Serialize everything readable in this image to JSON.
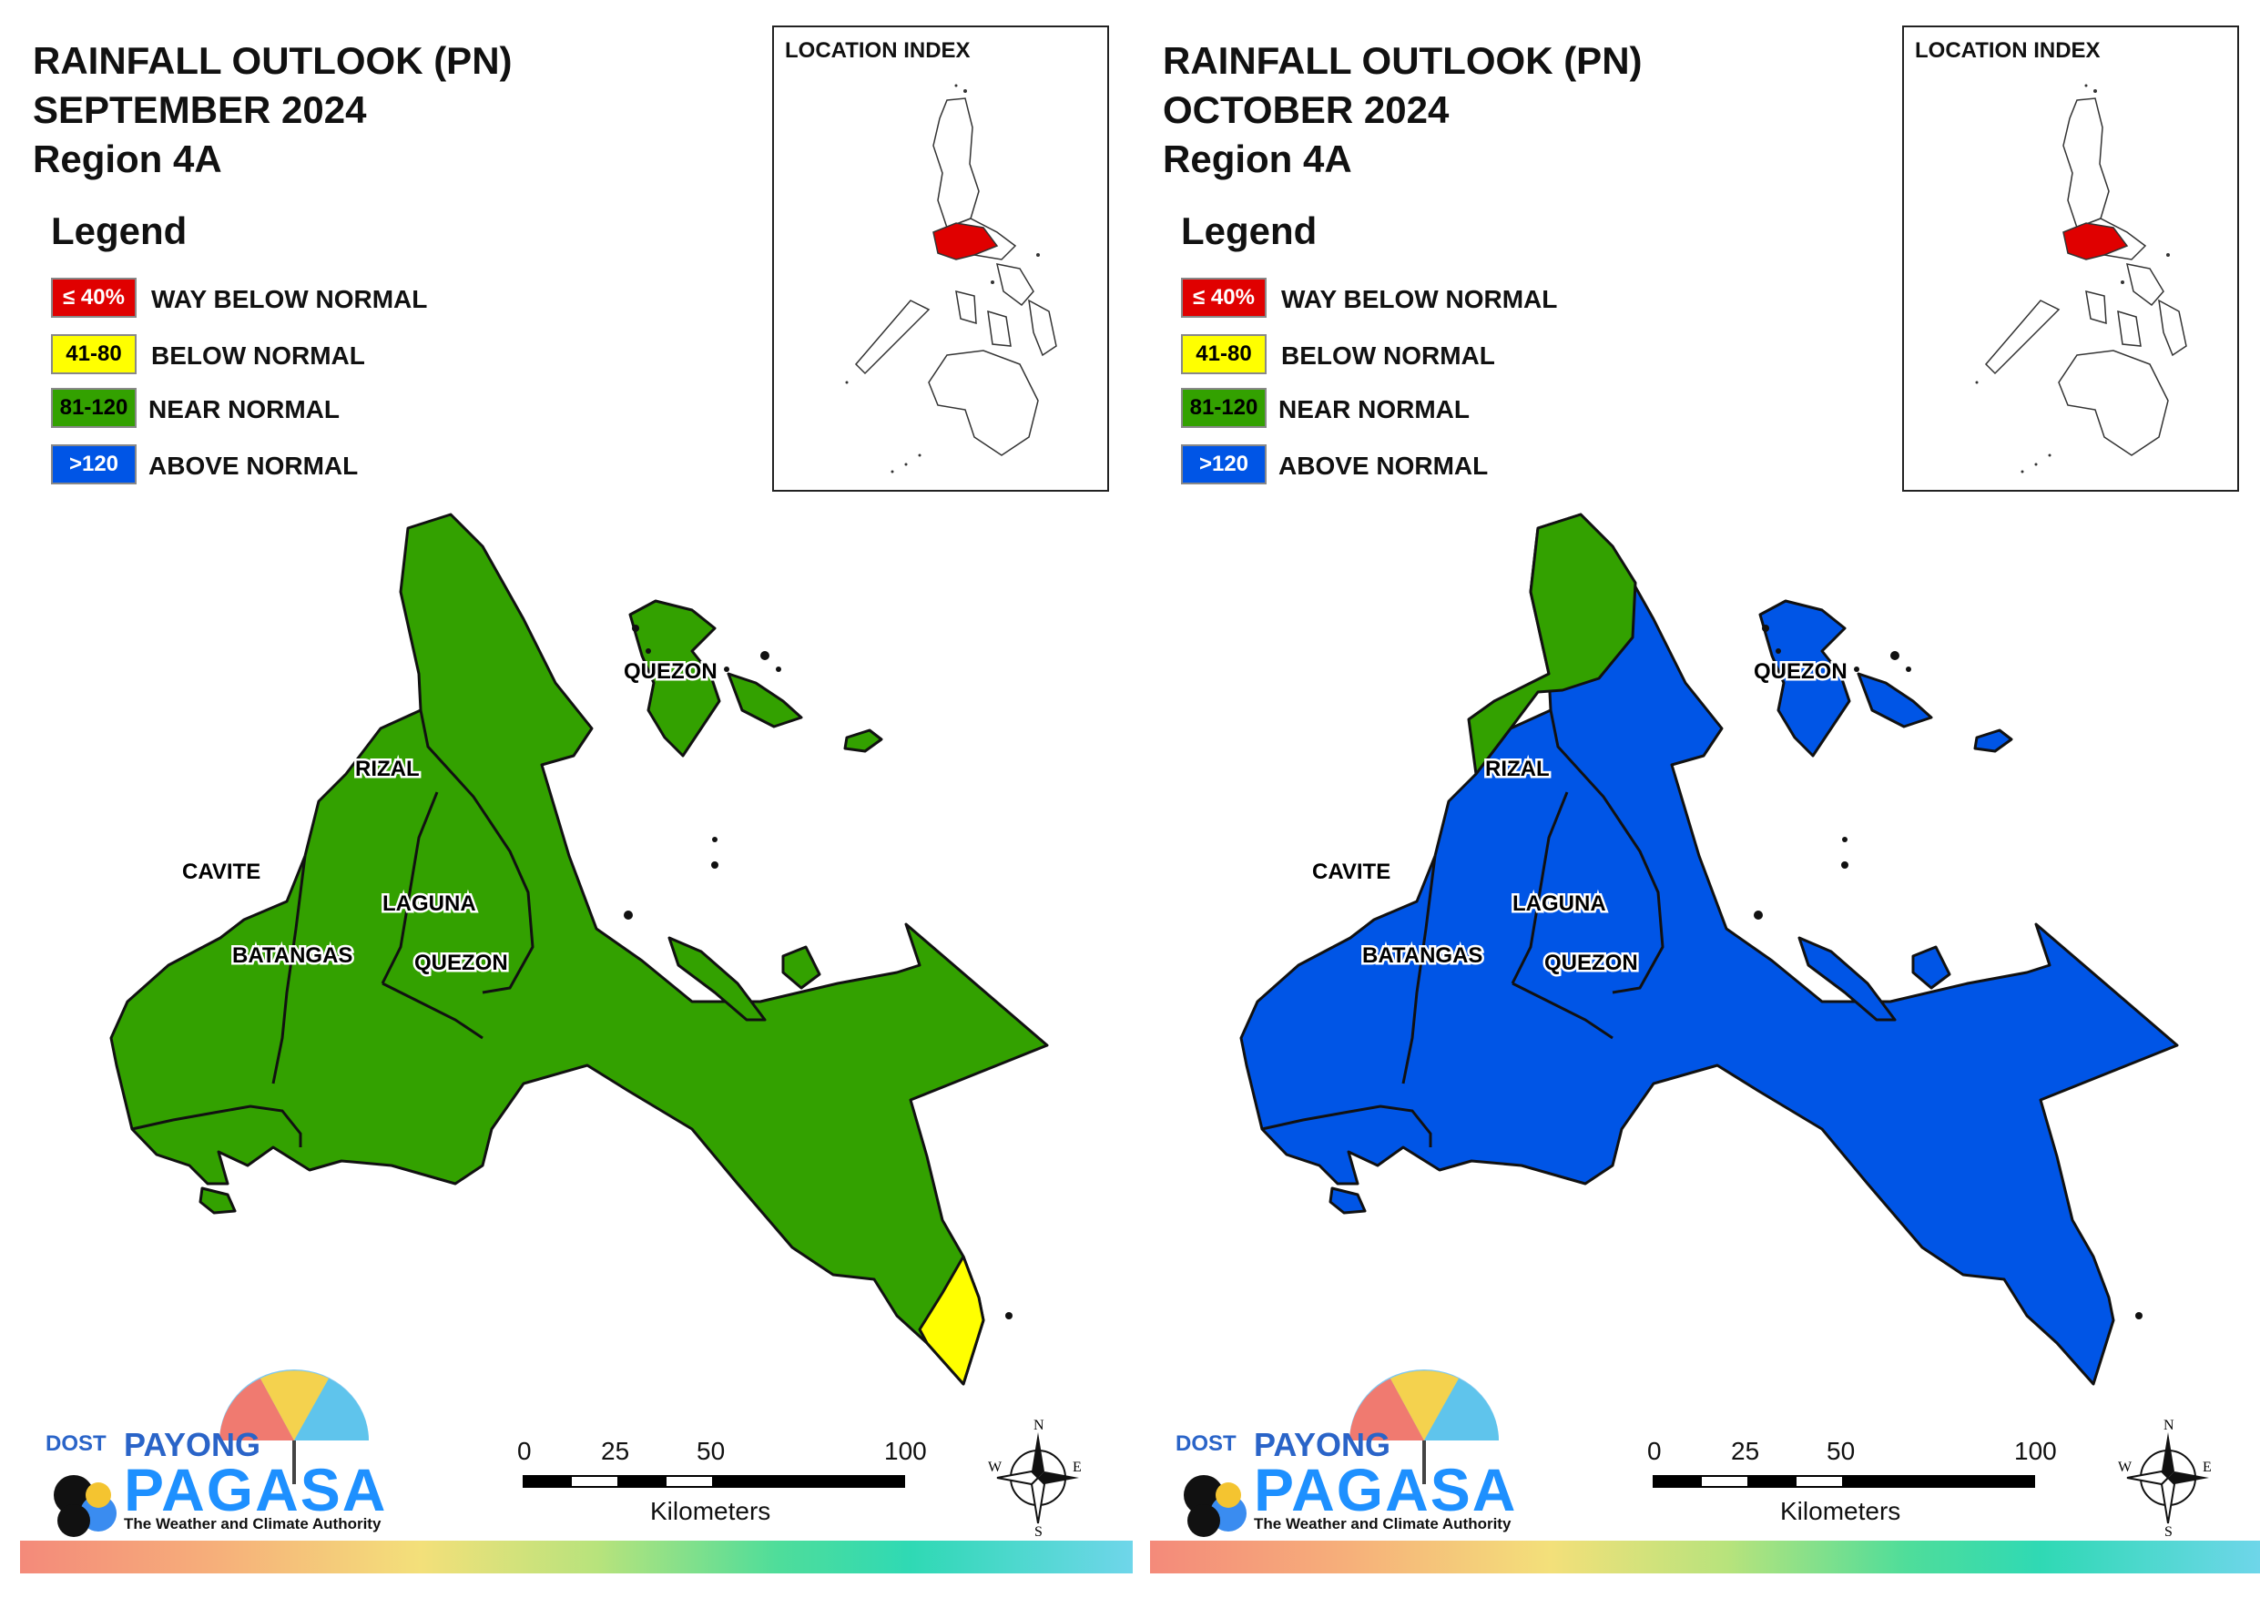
{
  "panels": [
    {
      "title": [
        "RAINFALL OUTLOOK (PN)",
        "SEPTEMBER 2024",
        "Region 4A"
      ],
      "fill_main": "#33a100",
      "fill_ne": "#33a100",
      "fill_se": "#ffff00"
    },
    {
      "title": [
        "RAINFALL OUTLOOK (PN)",
        "OCTOBER 2024",
        "Region 4A"
      ],
      "fill_main": "#0055e6",
      "fill_ne": "#33a100",
      "fill_se": "#0055e6"
    }
  ],
  "legend": {
    "title": "Legend",
    "items": [
      {
        "code": "≤ 40%",
        "label": "WAY BELOW NORMAL",
        "color": "#e00000"
      },
      {
        "code": "41-80",
        "label": "BELOW NORMAL",
        "color": "#ffff00"
      },
      {
        "code": "81-120",
        "label": "NEAR NORMAL",
        "color": "#33a100"
      },
      {
        "code": ">120",
        "label": "ABOVE NORMAL",
        "color": "#0055e6"
      }
    ]
  },
  "location_index": {
    "title": "LOCATION INDEX",
    "highlight_color": "#e00000"
  },
  "places": [
    "QUEZON",
    "RIZAL",
    "CAVITE",
    "LAGUNA",
    "BATANGAS",
    "QUEZON"
  ],
  "scale": {
    "ticks": [
      "0",
      "25",
      "50",
      "100"
    ],
    "unit": "Kilometers"
  },
  "compass": {
    "n": "N",
    "e": "E",
    "s": "S",
    "w": "W"
  },
  "logo": {
    "dost": "DOST",
    "payong": "PAYONG",
    "pagasa": "PAGASA",
    "tagline": "The Weather and Climate Authority"
  }
}
